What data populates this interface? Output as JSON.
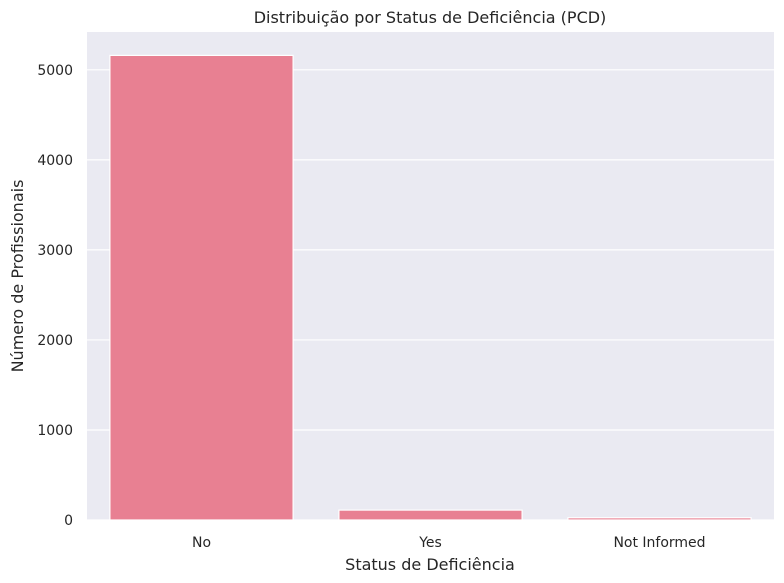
{
  "chart_data": {
    "type": "bar",
    "title": "Distribuição por Status de Deficiência (PCD)",
    "xlabel": "Status de Deficiência",
    "ylabel": "Número de Profissionais",
    "categories": [
      "No",
      "Yes",
      "Not Informed"
    ],
    "values": [
      5160,
      110,
      25
    ],
    "ylim": [
      0,
      5420
    ],
    "yticks": [
      0,
      1000,
      2000,
      3000,
      4000,
      5000
    ],
    "grid": true,
    "colors": {
      "bar": "#e88092",
      "background": "#eaeaf2",
      "grid": "#ffffff",
      "text": "#262626"
    }
  }
}
